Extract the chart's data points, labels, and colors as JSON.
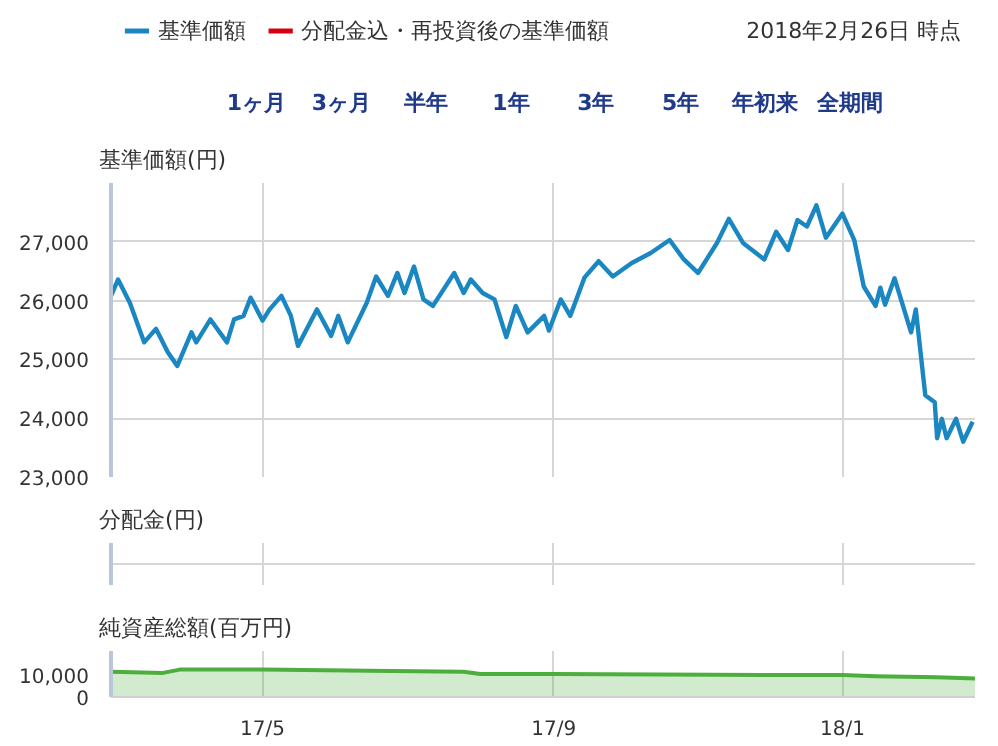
{
  "chart_data": [
    {
      "type": "line",
      "ylabel": "基準価額(円)",
      "legend": "top left",
      "grid": true,
      "tick_labels": "y",
      "marker": "none",
      "line_style": "solid",
      "annotations": [
        "2018年2月26日 時点",
        "1ヶ月",
        "3ヶ月",
        "半年",
        "1年",
        "3年",
        "5年",
        "年初来",
        "全期間"
      ],
      "xlim": [
        "2017-02-26",
        "2018-02-26"
      ],
      "xticks": [
        {
          "value": "2017-05-01",
          "label": null
        },
        {
          "value": "2017-09-01",
          "label": null
        },
        {
          "value": "2018-01-01",
          "label": null
        }
      ],
      "ylim": [
        23000,
        28000
      ],
      "yticks": [
        {
          "value": 23000,
          "label": "23,000"
        },
        {
          "value": 24000,
          "label": "24,000"
        },
        {
          "value": 25000,
          "label": "25,000"
        },
        {
          "value": 26000,
          "label": "26,000"
        },
        {
          "value": 27000,
          "label": "27,000"
        }
      ],
      "x": [
        "2017-02-26",
        "2017-03-01",
        "2017-03-06",
        "2017-03-12",
        "2017-03-17",
        "2017-03-22",
        "2017-03-26",
        "2017-04-01",
        "2017-04-03",
        "2017-04-09",
        "2017-04-16",
        "2017-04-19",
        "2017-04-23",
        "2017-04-26",
        "2017-05-01",
        "2017-05-04",
        "2017-05-09",
        "2017-05-13",
        "2017-05-16",
        "2017-05-24",
        "2017-05-30",
        "2017-06-02",
        "2017-06-06",
        "2017-06-14",
        "2017-06-18",
        "2017-06-23",
        "2017-06-27",
        "2017-06-30",
        "2017-07-04",
        "2017-07-08",
        "2017-07-12",
        "2017-07-21",
        "2017-07-25",
        "2017-07-28",
        "2017-08-02",
        "2017-08-07",
        "2017-08-12",
        "2017-08-16",
        "2017-08-21",
        "2017-08-28",
        "2017-08-30",
        "2017-09-04",
        "2017-09-08",
        "2017-09-14",
        "2017-09-20",
        "2017-09-26",
        "2017-10-04",
        "2017-10-12",
        "2017-10-20",
        "2017-10-26",
        "2017-11-01",
        "2017-11-09",
        "2017-11-14",
        "2017-11-20",
        "2017-11-29",
        "2017-12-04",
        "2017-12-09",
        "2017-12-13",
        "2017-12-17",
        "2017-12-21",
        "2017-12-25",
        "2018-01-01",
        "2018-01-06",
        "2018-01-10",
        "2018-01-15",
        "2018-01-17",
        "2018-01-19",
        "2018-01-23",
        "2018-01-30",
        "2018-02-01",
        "2018-02-05",
        "2018-02-09",
        "2018-02-10",
        "2018-02-12",
        "2018-02-14",
        "2018-02-18",
        "2018-02-21",
        "2018-02-25"
      ],
      "series": [
        {
          "name": "基準価額",
          "color": "#1a87c2",
          "values": [
            26080,
            26360,
            25960,
            25290,
            25520,
            25120,
            24890,
            25460,
            25290,
            25680,
            25290,
            25680,
            25740,
            26050,
            25660,
            25850,
            26080,
            25740,
            25230,
            25850,
            25400,
            25740,
            25290,
            25960,
            26410,
            26080,
            26470,
            26130,
            26580,
            26020,
            25910,
            26470,
            26130,
            26360,
            26130,
            26020,
            25380,
            25910,
            25460,
            25740,
            25490,
            26020,
            25740,
            26390,
            26670,
            26410,
            26640,
            26810,
            27030,
            26700,
            26470,
            26980,
            27390,
            26980,
            26700,
            27170,
            26860,
            27370,
            27260,
            27620,
            27070,
            27480,
            27030,
            26240,
            25910,
            26220,
            25930,
            26380,
            25460,
            25850,
            24390,
            24270,
            23660,
            23990,
            23660,
            23990,
            23600,
            23940
          ]
        },
        {
          "name": "分配金込・再投資後の基準価額",
          "color": "#d7000f",
          "values": [
            null,
            null,
            null,
            null,
            null,
            null,
            null,
            null,
            null,
            null,
            null,
            null,
            null,
            null,
            null,
            null,
            null,
            null,
            null,
            null,
            null,
            null,
            null,
            null,
            null,
            null,
            null,
            null,
            null,
            null,
            null,
            null,
            null,
            null,
            null,
            null,
            null,
            null,
            null,
            null,
            null,
            null,
            null,
            null,
            null,
            null,
            null,
            null,
            null,
            null,
            null,
            null,
            null,
            null,
            null,
            null,
            null,
            null,
            null,
            null,
            null,
            null,
            null,
            null,
            null,
            null,
            null,
            null,
            null,
            null,
            null,
            null,
            null,
            null,
            null,
            null,
            null,
            null
          ]
        }
      ]
    },
    {
      "type": "other",
      "ylabel": "分配金(円)",
      "annotations": [
        "0"
      ]
    },
    {
      "type": "area",
      "ylabel": "純資産総額(百万円)",
      "grid": "x",
      "xlim": [
        "2017-02-26",
        "2018-02-26"
      ],
      "xticks": [
        {
          "value": "2017-05-01",
          "label": "17/5"
        },
        {
          "value": "2017-09-01",
          "label": "17/9"
        },
        {
          "value": "2018-01-01",
          "label": "18/1"
        }
      ],
      "ylim": [
        0,
        21000
      ],
      "yticks": [
        0,
        {
          "value": 10000,
          "label": "10,000"
        }
      ],
      "x": [
        "2017-02-26",
        "2017-03-20",
        "2017-03-27",
        "2017-05-01",
        "2017-06-15",
        "2017-07-25",
        "2017-08-01",
        "2017-09-01",
        "2017-12-01",
        "2018-01-01",
        "2018-01-15",
        "2018-02-10",
        "2018-02-26"
      ],
      "series": [
        {
          "color": "#4cae3c",
          "values": [
            11500,
            11000,
            12500,
            12500,
            12000,
            11500,
            10500,
            10500,
            10000,
            10000,
            9500,
            9000,
            8500
          ]
        }
      ]
    }
  ]
}
